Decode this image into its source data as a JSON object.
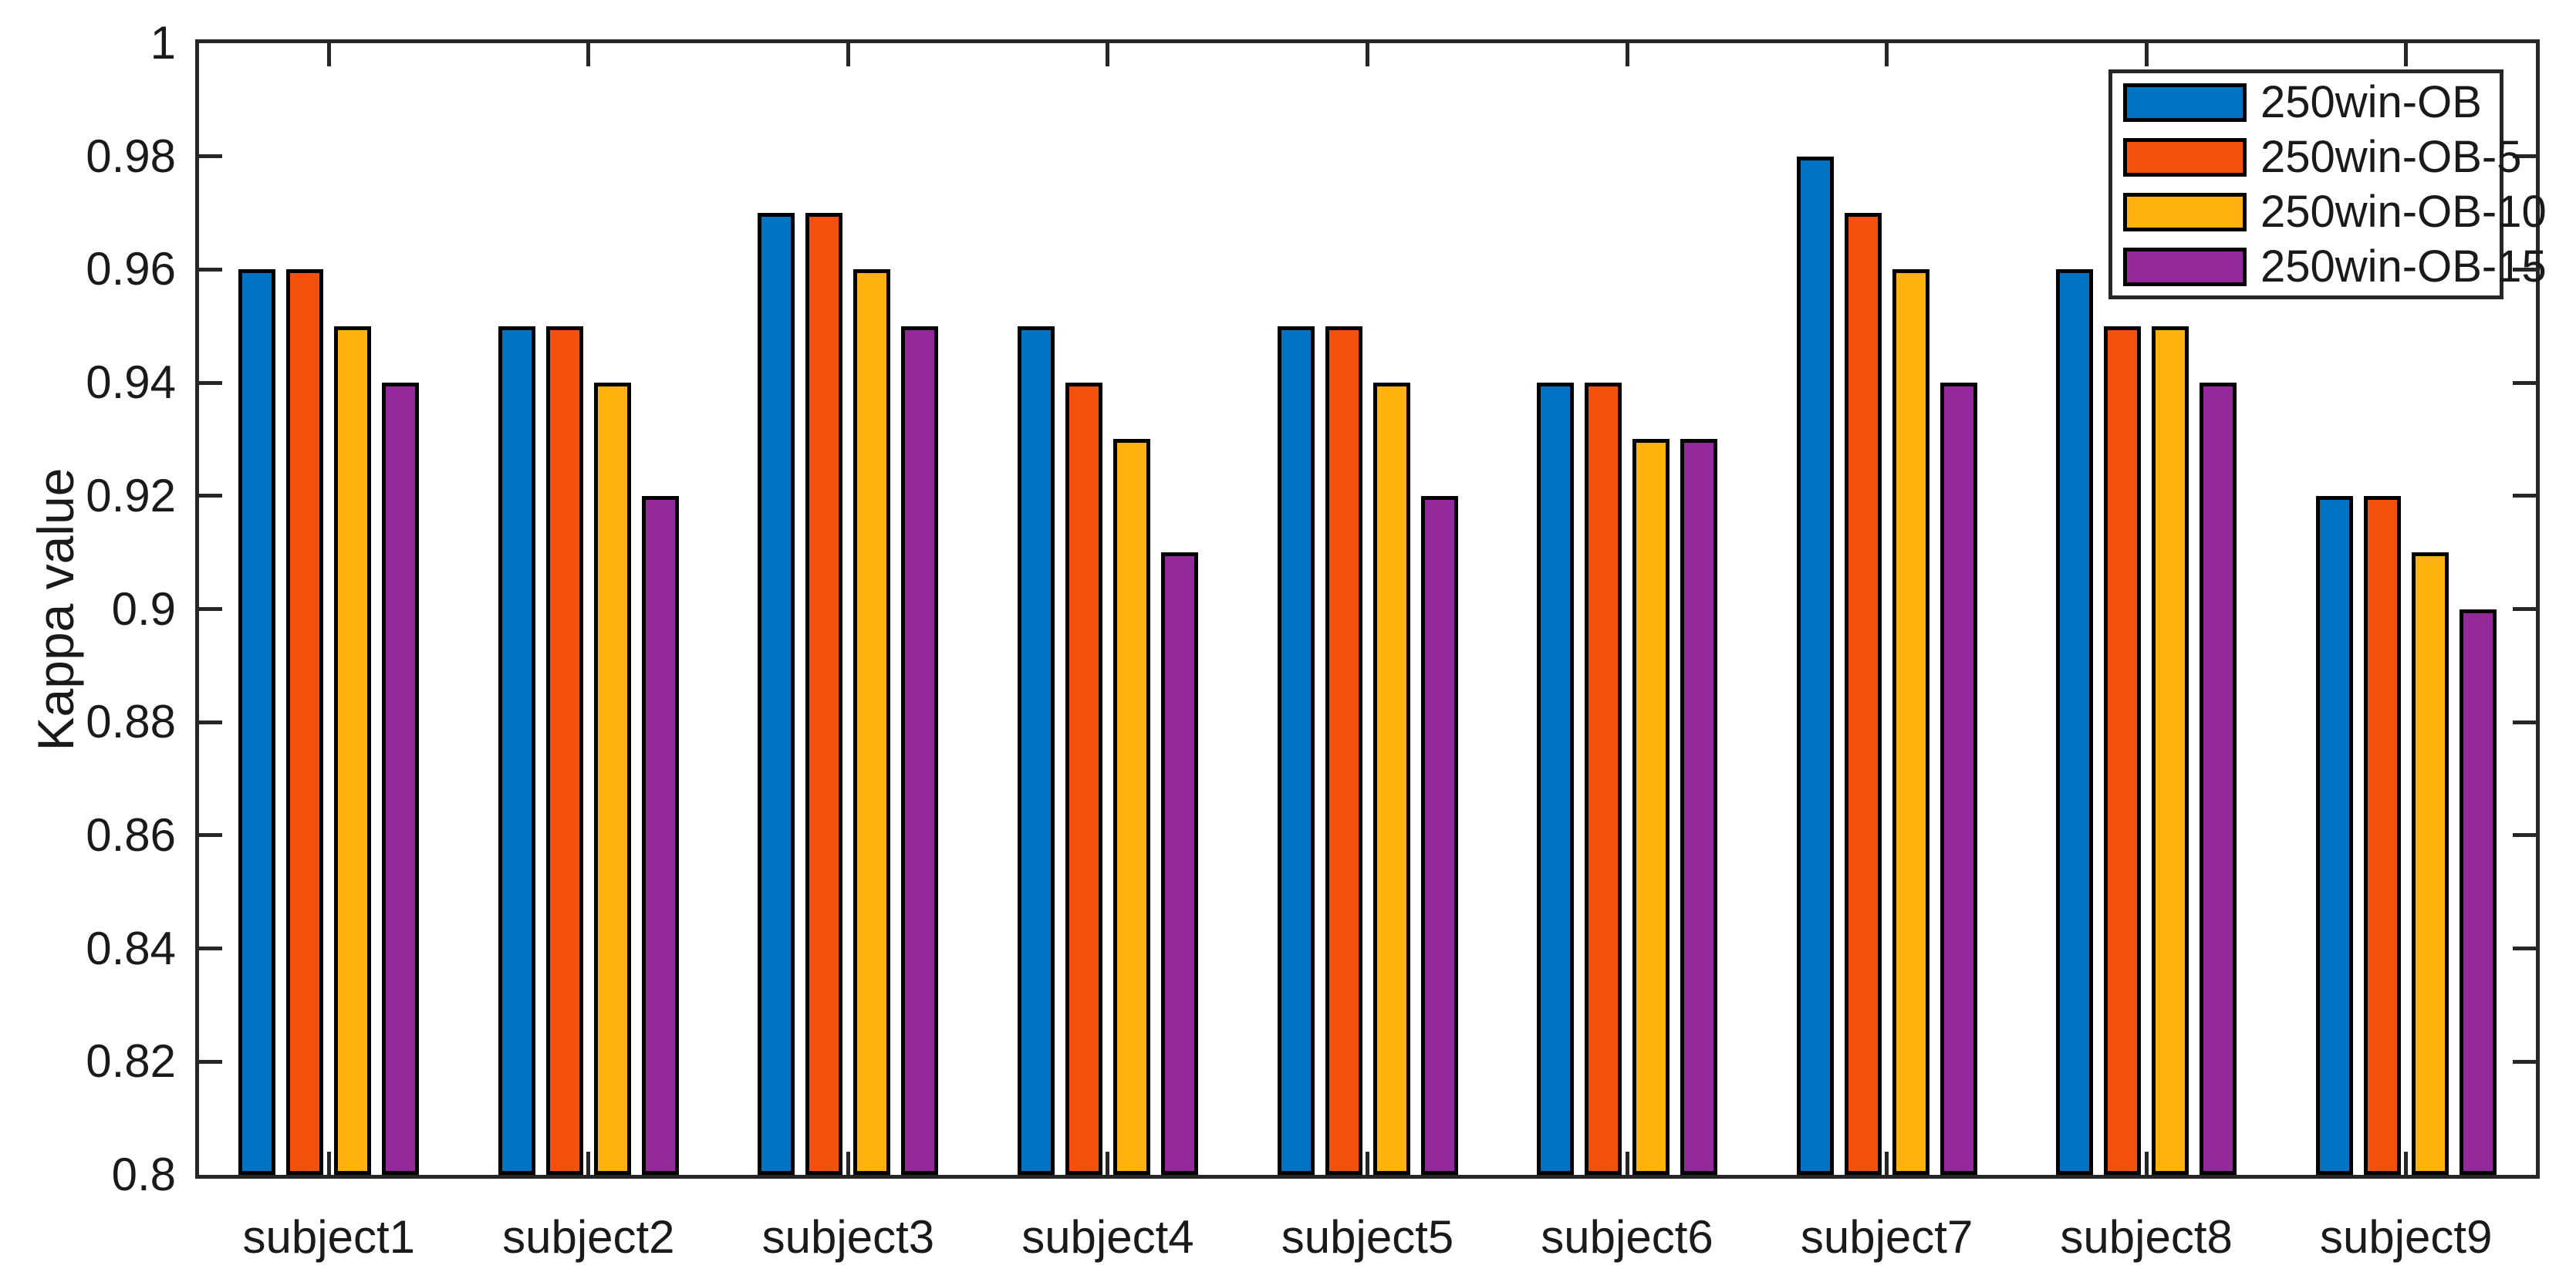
{
  "chart_data": {
    "type": "bar",
    "title": "",
    "xlabel": "",
    "ylabel": "Kappa value",
    "categories": [
      "subject1",
      "subject2",
      "subject3",
      "subject4",
      "subject5",
      "subject6",
      "subject7",
      "subject8",
      "subject9"
    ],
    "series": [
      {
        "name": "250win-OB",
        "color": "#0073C2",
        "values": [
          0.96,
          0.95,
          0.97,
          0.95,
          0.95,
          0.94,
          0.98,
          0.96,
          0.92
        ]
      },
      {
        "name": "250win-OB-5",
        "color": "#F4510C",
        "values": [
          0.96,
          0.95,
          0.97,
          0.94,
          0.95,
          0.94,
          0.97,
          0.95,
          0.92
        ]
      },
      {
        "name": "250win-OB-10",
        "color": "#FFB20D",
        "values": [
          0.95,
          0.94,
          0.96,
          0.93,
          0.94,
          0.93,
          0.96,
          0.95,
          0.91
        ]
      },
      {
        "name": "250win-OB-15",
        "color": "#93299A",
        "values": [
          0.94,
          0.92,
          0.95,
          0.91,
          0.92,
          0.93,
          0.94,
          0.94,
          0.9
        ]
      }
    ],
    "ylim": [
      0.8,
      1.0
    ],
    "ytick_step": 0.02,
    "ytick_labels_top_to_bottom": [
      "1",
      "0.98",
      "0.96",
      "0.94",
      "0.92",
      "0.9",
      "0.88",
      "0.86",
      "0.84",
      "0.82",
      "0.8"
    ],
    "legend_position": "northeast",
    "grid": false
  },
  "style": {
    "axis_color": "#262626",
    "bar_edge_color": "#000000",
    "background": "#ffffff"
  }
}
